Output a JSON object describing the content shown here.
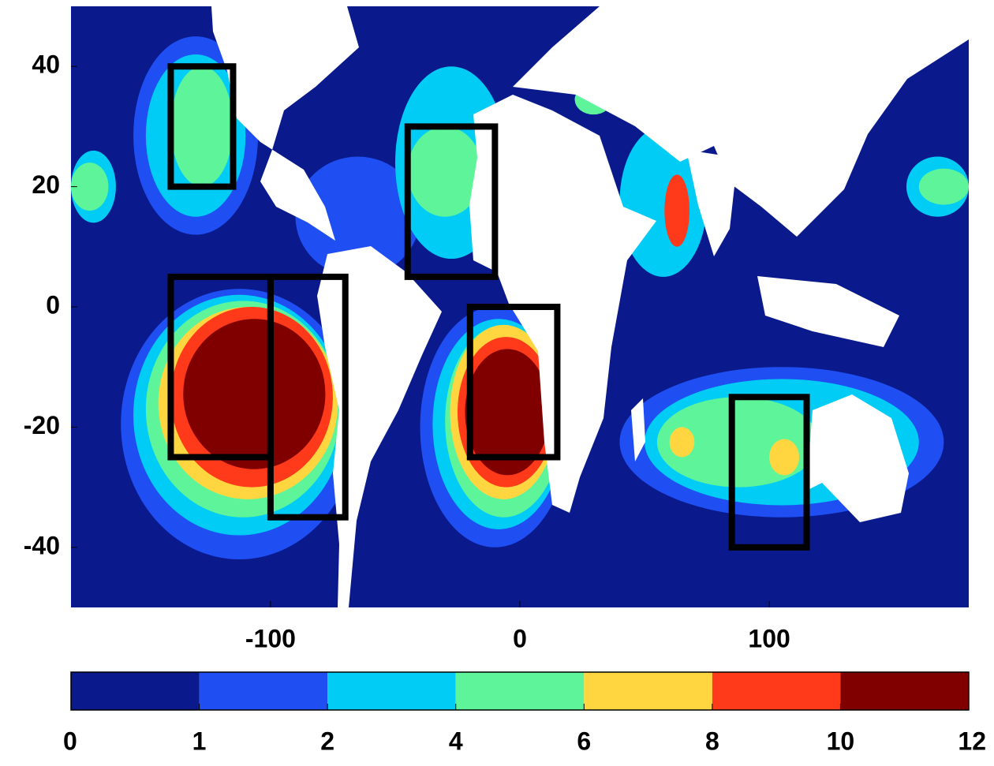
{
  "chart_data": {
    "type": "heatmap",
    "xlim": [
      -180,
      180
    ],
    "ylim": [
      -50,
      50
    ],
    "xticks": [
      -100,
      0,
      100
    ],
    "yticks": [
      -40,
      -20,
      0,
      20,
      40
    ],
    "colorbar": {
      "ticks": [
        0,
        1,
        2,
        4,
        6,
        8,
        10,
        12
      ],
      "colors": [
        "#0a1a8c",
        "#1f4ff2",
        "#00ccf5",
        "#5ef59a",
        "#ffd640",
        "#ff3a1a",
        "#800000"
      ]
    },
    "patches": [
      {
        "lon": [
          -155,
          -105
        ],
        "lat": [
          12,
          45
        ],
        "value": 1.5
      },
      {
        "lon": [
          -150,
          -110
        ],
        "lat": [
          15,
          42
        ],
        "value": 3
      },
      {
        "lon": [
          -140,
          -115
        ],
        "lat": [
          20,
          40
        ],
        "value": 5
      },
      {
        "lon": [
          -180,
          -162
        ],
        "lat": [
          14,
          26
        ],
        "value": 3
      },
      {
        "lon": [
          -180,
          -165
        ],
        "lat": [
          16,
          24
        ],
        "value": 5
      },
      {
        "lon": [
          -160,
          -65
        ],
        "lat": [
          -42,
          3
        ],
        "value": 1.5
      },
      {
        "lon": [
          -155,
          -70
        ],
        "lat": [
          -38,
          2
        ],
        "value": 3
      },
      {
        "lon": [
          -150,
          -72
        ],
        "lat": [
          -35,
          1
        ],
        "value": 5
      },
      {
        "lon": [
          -145,
          -73
        ],
        "lat": [
          -32,
          0
        ],
        "value": 7
      },
      {
        "lon": [
          -140,
          -75
        ],
        "lat": [
          -30,
          0
        ],
        "value": 9
      },
      {
        "lon": [
          -135,
          -78
        ],
        "lat": [
          -27,
          -2
        ],
        "value": 11
      },
      {
        "lon": [
          -90,
          -40
        ],
        "lat": [
          5,
          25
        ],
        "value": 1.5
      },
      {
        "lon": [
          -50,
          -5
        ],
        "lat": [
          8,
          40
        ],
        "value": 3
      },
      {
        "lon": [
          -45,
          -15
        ],
        "lat": [
          15,
          30
        ],
        "value": 5
      },
      {
        "lon": [
          -40,
          20
        ],
        "lat": [
          -40,
          0
        ],
        "value": 1.5
      },
      {
        "lon": [
          -35,
          18
        ],
        "lat": [
          -37,
          -2
        ],
        "value": 3
      },
      {
        "lon": [
          -30,
          17
        ],
        "lat": [
          -35,
          -3
        ],
        "value": 5
      },
      {
        "lon": [
          -28,
          15
        ],
        "lat": [
          -32,
          -3
        ],
        "value": 7
      },
      {
        "lon": [
          -25,
          14
        ],
        "lat": [
          -30,
          -5
        ],
        "value": 9
      },
      {
        "lon": [
          -22,
          12
        ],
        "lat": [
          -28,
          -7
        ],
        "value": 11
      },
      {
        "lon": [
          22,
          37
        ],
        "lat": [
          32,
          37
        ],
        "value": 5
      },
      {
        "lon": [
          40,
          75
        ],
        "lat": [
          5,
          30
        ],
        "value": 3
      },
      {
        "lon": [
          58,
          68
        ],
        "lat": [
          10,
          22
        ],
        "value": 9
      },
      {
        "lon": [
          40,
          170
        ],
        "lat": [
          -35,
          -10
        ],
        "value": 1.5
      },
      {
        "lon": [
          50,
          160
        ],
        "lat": [
          -33,
          -12
        ],
        "value": 3
      },
      {
        "lon": [
          55,
          120
        ],
        "lat": [
          -30,
          -15
        ],
        "value": 5
      },
      {
        "lon": [
          60,
          70
        ],
        "lat": [
          -25,
          -20
        ],
        "value": 7
      },
      {
        "lon": [
          100,
          112
        ],
        "lat": [
          -28,
          -22
        ],
        "value": 7
      },
      {
        "lon": [
          155,
          180
        ],
        "lat": [
          15,
          25
        ],
        "value": 3
      },
      {
        "lon": [
          160,
          180
        ],
        "lat": [
          17,
          23
        ],
        "value": 5
      }
    ],
    "boxes": [
      {
        "lon": [
          -140,
          -115
        ],
        "lat": [
          20,
          40
        ]
      },
      {
        "lon": [
          -45,
          -10
        ],
        "lat": [
          5,
          30
        ]
      },
      {
        "lon": [
          -140,
          -100
        ],
        "lat": [
          -25,
          5
        ]
      },
      {
        "lon": [
          -100,
          -70
        ],
        "lat": [
          -35,
          5
        ]
      },
      {
        "lon": [
          -20,
          15
        ],
        "lat": [
          -25,
          0
        ]
      },
      {
        "lon": [
          85,
          115
        ],
        "lat": [
          -40,
          -15
        ]
      }
    ],
    "box_color": "#000000"
  }
}
